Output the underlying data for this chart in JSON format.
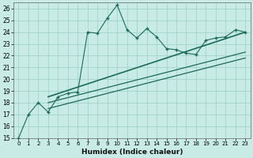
{
  "xlabel": "Humidex (Indice chaleur)",
  "bg_color": "#c8ebe6",
  "grid_color": "#a0d4cc",
  "line_color": "#1a6b5a",
  "xlim": [
    -0.5,
    23.5
  ],
  "ylim": [
    15,
    26.5
  ],
  "xticks": [
    0,
    1,
    2,
    3,
    4,
    5,
    6,
    7,
    8,
    9,
    10,
    11,
    12,
    13,
    14,
    15,
    16,
    17,
    18,
    19,
    20,
    21,
    22,
    23
  ],
  "yticks": [
    15,
    16,
    17,
    18,
    19,
    20,
    21,
    22,
    23,
    24,
    25,
    26
  ],
  "main_x": [
    0,
    1,
    2,
    3,
    4,
    5,
    6,
    7,
    8,
    9,
    10,
    11,
    12,
    13,
    14,
    15,
    16,
    17,
    18,
    19,
    20,
    21,
    22,
    23
  ],
  "main_y": [
    15.0,
    17.0,
    18.0,
    17.2,
    18.5,
    18.8,
    18.9,
    24.0,
    23.9,
    25.2,
    26.3,
    24.2,
    23.5,
    24.3,
    23.6,
    22.6,
    22.5,
    22.2,
    22.1,
    23.3,
    23.5,
    23.6,
    24.2,
    24.0
  ],
  "trend1_x": [
    3,
    23
  ],
  "trend1_y": [
    17.5,
    21.8
  ],
  "trend2_x": [
    3,
    23
  ],
  "trend2_y": [
    18.0,
    22.3
  ],
  "trend3_x": [
    3,
    23
  ],
  "trend3_y": [
    18.5,
    24.0
  ]
}
